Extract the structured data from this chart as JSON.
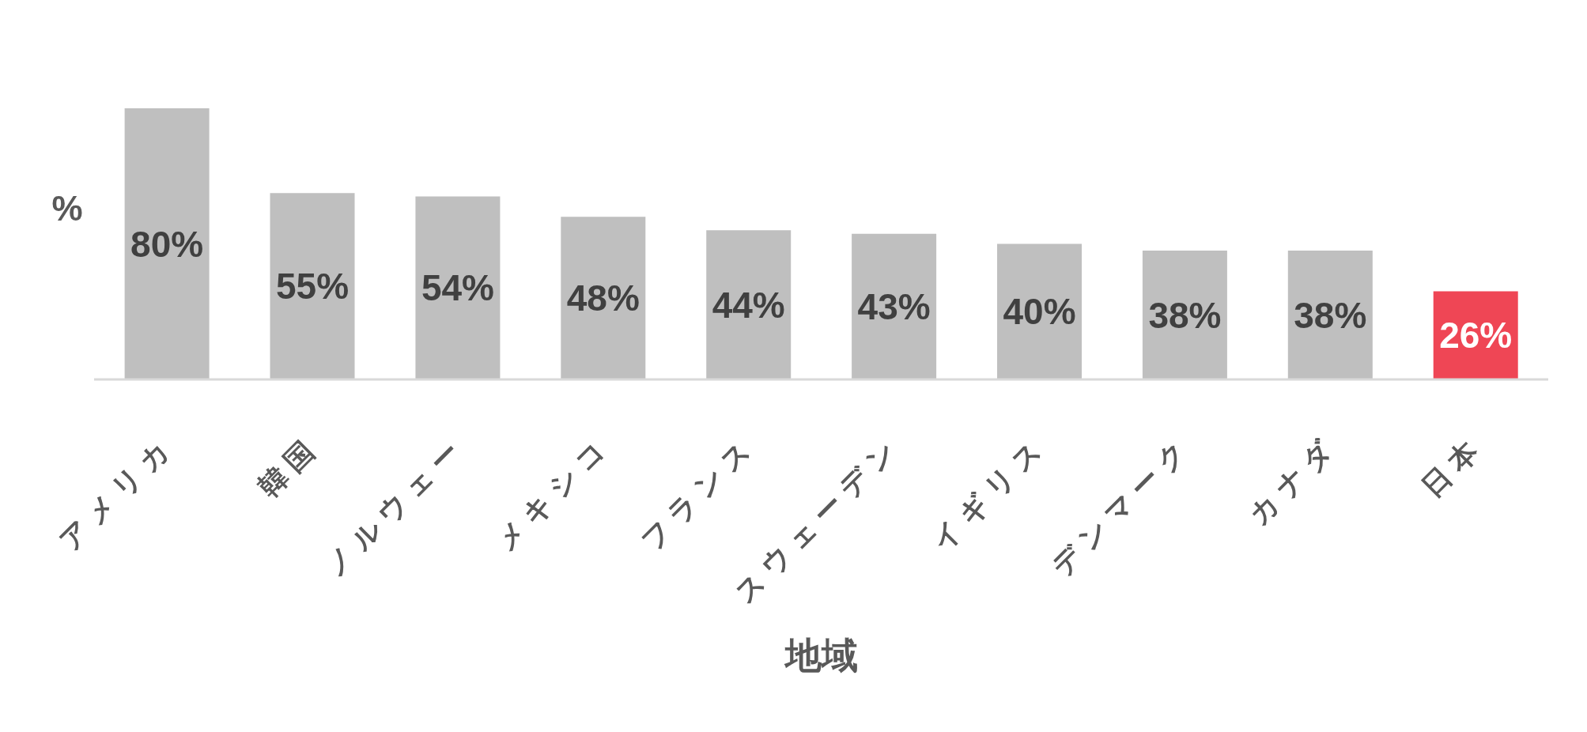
{
  "chart_data": {
    "type": "bar",
    "xlabel": "地域",
    "ylabel": "%",
    "categories": [
      "アメリカ",
      "韓国",
      "ノルウェー",
      "メキシコ",
      "フランス",
      "スウェーデン",
      "イギリス",
      "デンマーク",
      "カナダ",
      "日本"
    ],
    "values": [
      80,
      55,
      54,
      48,
      44,
      43,
      40,
      38,
      38,
      26
    ],
    "colors": [
      "#bfbfbf",
      "#bfbfbf",
      "#bfbfbf",
      "#bfbfbf",
      "#bfbfbf",
      "#bfbfbf",
      "#bfbfbf",
      "#bfbfbf",
      "#bfbfbf",
      "#ef4655"
    ],
    "value_labels": [
      "80%",
      "55%",
      "54%",
      "48%",
      "44%",
      "43%",
      "40%",
      "38%",
      "38%",
      "26%"
    ],
    "tick_labels": "x"
  }
}
